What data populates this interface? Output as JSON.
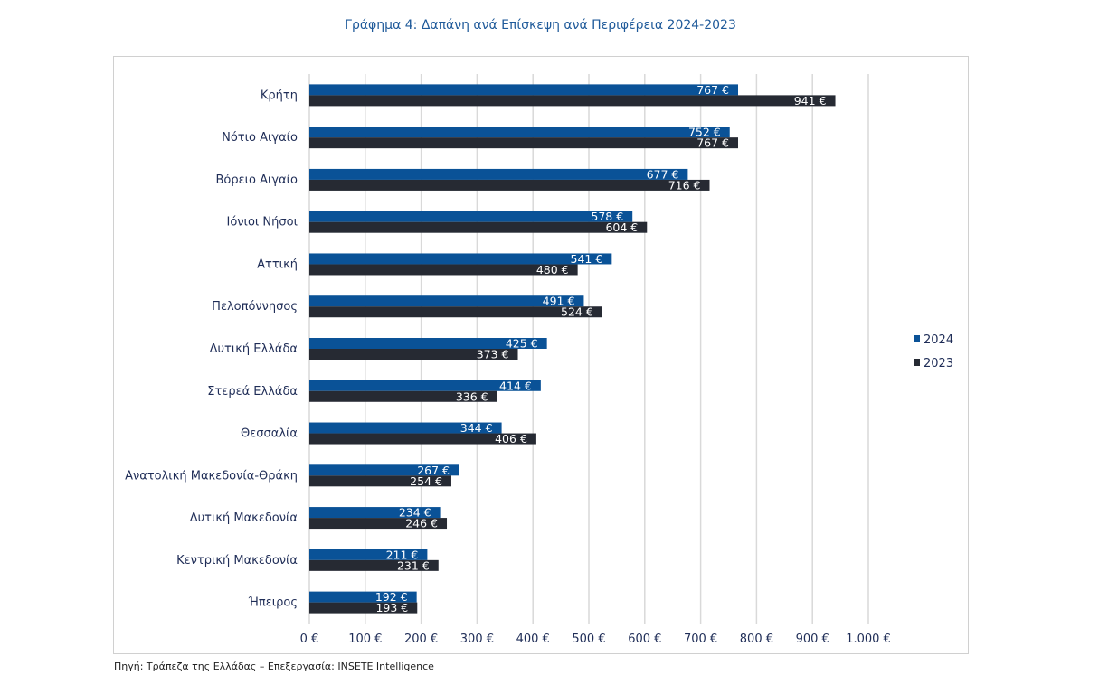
{
  "title": "Γράφημα 4: Δαπάνη ανά Επίσκεψη ανά Περιφέρεια 2024-2023",
  "source": "Πηγή: Τράπεζα της Ελλάδας – Επεξεργασία: INSETE Intelligence",
  "colors": {
    "series_2024": "#0a5297",
    "series_2023": "#262a33",
    "grid": "#d9d9d9",
    "label_text": "#1f1f1f"
  },
  "chart_data": {
    "type": "bar",
    "orientation": "horizontal",
    "title": "Γράφημα 4: Δαπάνη ανά Επίσκεψη ανά Περιφέρεια 2024-2023",
    "xlabel": "",
    "ylabel": "",
    "xlim": [
      0,
      1000
    ],
    "tick_labels": [
      "0 €",
      "100 €",
      "200 €",
      "300 €",
      "400 €",
      "500 €",
      "600 €",
      "700 €",
      "800 €",
      "900 €",
      "1.000 €"
    ],
    "grid": true,
    "legend_position": "right",
    "categories": [
      "Κρήτη",
      "Νότιο Αιγαίο",
      "Βόρειο Αιγαίο",
      "Ιόνιοι Νήσοι",
      "Αττική",
      "Πελοπόννησος",
      "Δυτική Ελλάδα",
      "Στερεά Ελλάδα",
      "Θεσσαλία",
      "Ανατολική Μακεδονία-Θράκη",
      "Δυτική Μακεδονία",
      "Κεντρική Μακεδονία",
      "Ήπειρος"
    ],
    "series": [
      {
        "name": "2024",
        "values": [
          767,
          752,
          677,
          578,
          541,
          491,
          425,
          414,
          344,
          267,
          234,
          211,
          192
        ],
        "labels": [
          "767 €",
          "752 €",
          "677 €",
          "578 €",
          "541 €",
          "491 €",
          "425 €",
          "414 €",
          "344 €",
          "267 €",
          "234 €",
          "211 €",
          "192 €"
        ]
      },
      {
        "name": "2023",
        "values": [
          941,
          767,
          716,
          604,
          480,
          524,
          373,
          336,
          406,
          254,
          246,
          231,
          193
        ],
        "labels": [
          "941 €",
          "767 €",
          "716 €",
          "604 €",
          "480 €",
          "524 €",
          "373 €",
          "336 €",
          "406 €",
          "254 €",
          "246 €",
          "231 €",
          "193 €"
        ]
      }
    ]
  }
}
